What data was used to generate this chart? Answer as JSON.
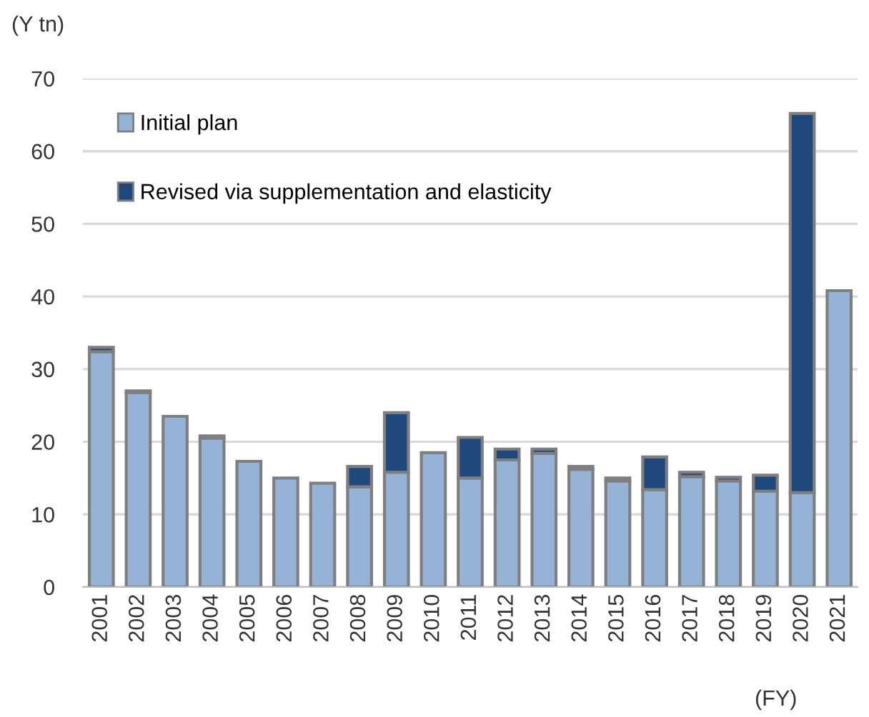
{
  "chart_data": {
    "type": "bar",
    "stacked": true,
    "ylabel": "(Y tn)",
    "xlabel": "(FY)",
    "categories": [
      "2001",
      "2002",
      "2003",
      "2004",
      "2005",
      "2006",
      "2007",
      "2008",
      "2009",
      "2010",
      "2011",
      "2012",
      "2013",
      "2014",
      "2015",
      "2016",
      "2017",
      "2018",
      "2019",
      "2020",
      "2021"
    ],
    "series": [
      {
        "name": "Initial plan",
        "color": "#95b3d7",
        "values": [
          32.4,
          26.8,
          23.5,
          20.5,
          17.3,
          15.0,
          14.3,
          13.8,
          15.8,
          18.5,
          15.0,
          17.5,
          18.4,
          16.2,
          14.6,
          13.4,
          15.2,
          14.6,
          13.2,
          13.0,
          40.8
        ]
      },
      {
        "name": "Revised via supplementation and elasticity",
        "color": "#1f497d",
        "values": [
          0.6,
          0.2,
          null,
          0.3,
          null,
          null,
          null,
          2.8,
          8.2,
          null,
          5.6,
          1.5,
          0.6,
          0.4,
          0.4,
          4.5,
          0.6,
          0.5,
          2.2,
          52.2,
          null
        ]
      }
    ],
    "ylim": [
      0,
      70
    ],
    "yticks": [
      0,
      10,
      20,
      30,
      40,
      50,
      60,
      70
    ],
    "grid": "y",
    "legend": "top left"
  }
}
